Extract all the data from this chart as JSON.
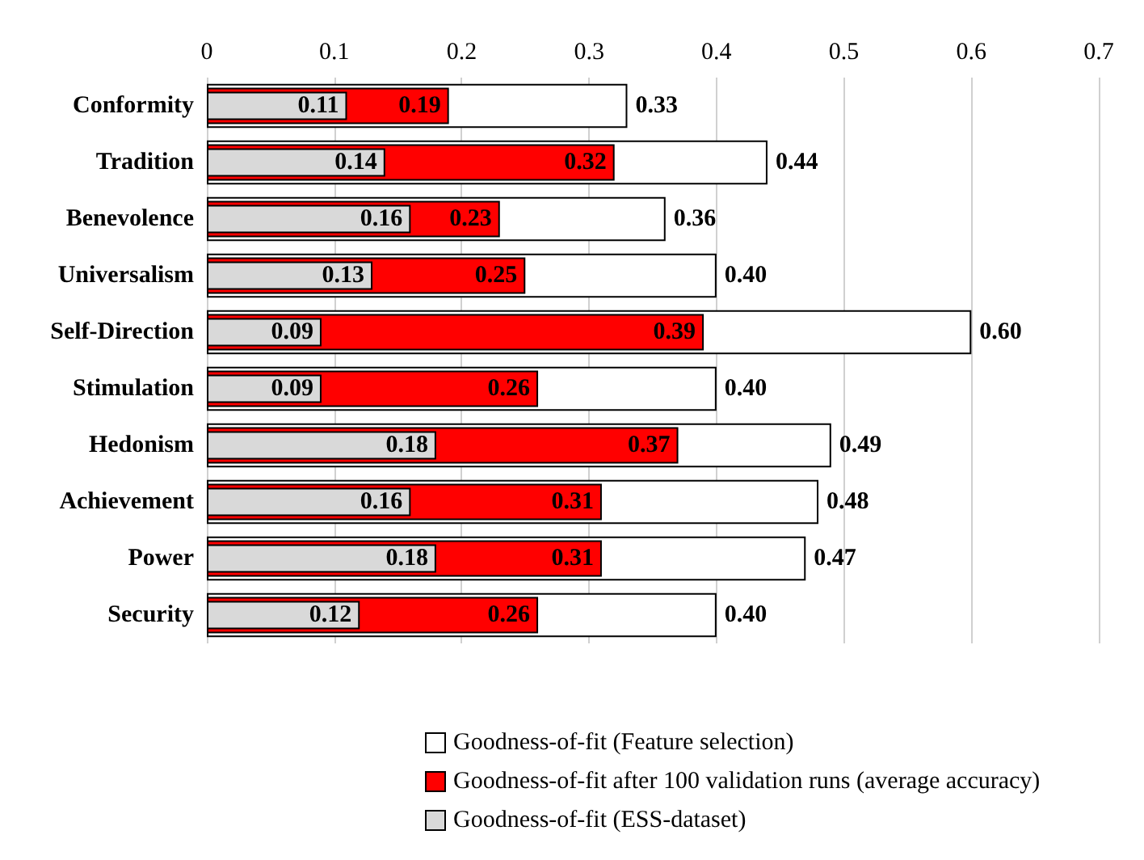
{
  "chart_data": {
    "type": "bar",
    "orientation": "horizontal",
    "categories": [
      "Conformity",
      "Tradition",
      "Benevolence",
      "Universalism",
      "Self-Direction",
      "Stimulation",
      "Hedonism",
      "Achievement",
      "Power",
      "Security"
    ],
    "series": [
      {
        "name": "Goodness-of-fit (Feature selection)",
        "color": "#ffffff",
        "values": [
          0.33,
          0.44,
          0.36,
          0.4,
          0.6,
          0.4,
          0.49,
          0.48,
          0.47,
          0.4
        ],
        "value_labels": [
          "0.33",
          "0.44",
          "0.36",
          "0.40",
          "0.60",
          "0.40",
          "0.49",
          "0.48",
          "0.47",
          "0.40"
        ]
      },
      {
        "name": "Goodness-of-fit after 100 validation runs (average accuracy)",
        "color": "#ff0000",
        "values": [
          0.19,
          0.32,
          0.23,
          0.25,
          0.39,
          0.26,
          0.37,
          0.31,
          0.31,
          0.26
        ],
        "value_labels": [
          "0.19",
          "0.32",
          "0.23",
          "0.25",
          "0.39",
          "0.26",
          "0.37",
          "0.31",
          "0.31",
          "0.26"
        ]
      },
      {
        "name": "Goodness-of-fit (ESS-dataset)",
        "color": "#d9d9d9",
        "values": [
          0.11,
          0.14,
          0.16,
          0.13,
          0.09,
          0.09,
          0.18,
          0.16,
          0.18,
          0.12
        ],
        "value_labels": [
          "0.11",
          "0.14",
          "0.16",
          "0.13",
          "0.09",
          "0.09",
          "0.18",
          "0.16",
          "0.18",
          "0.12"
        ]
      }
    ],
    "xlim": [
      0,
      0.7
    ],
    "xticks": [
      0,
      0.1,
      0.2,
      0.3,
      0.4,
      0.5,
      0.6,
      0.7
    ],
    "grid": "x",
    "legend": "bottom"
  }
}
